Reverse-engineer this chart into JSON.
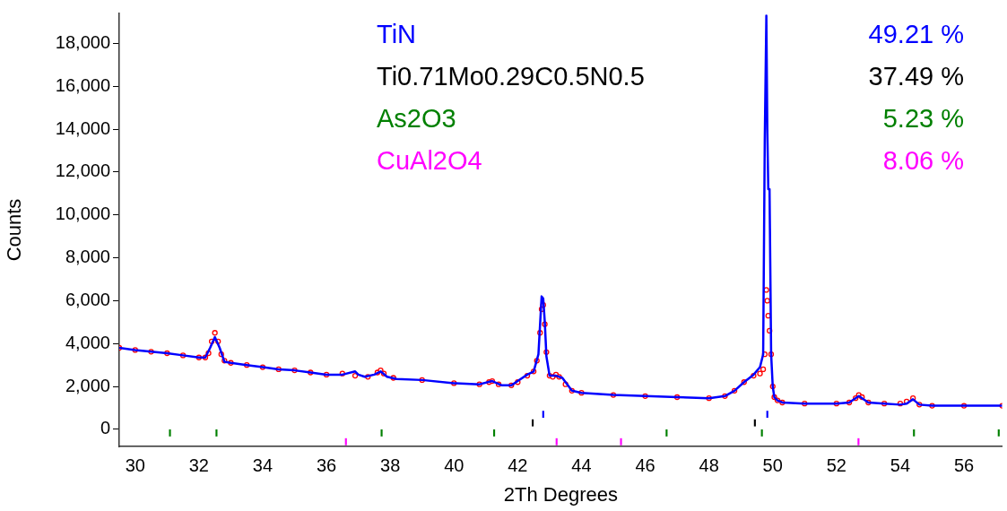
{
  "chart_data": {
    "type": "line",
    "xlabel": "2Th Degrees",
    "ylabel": "Counts",
    "xlim": [
      29.5,
      57.2
    ],
    "ylim": [
      -800,
      19400
    ],
    "xticks": [
      30,
      32,
      34,
      36,
      38,
      40,
      42,
      44,
      46,
      48,
      50,
      52,
      54,
      56
    ],
    "yticks": [
      {
        "value": 0,
        "label": "0"
      },
      {
        "value": 2000,
        "label": "2,000"
      },
      {
        "value": 4000,
        "label": "4,000"
      },
      {
        "value": 6000,
        "label": "6,000"
      },
      {
        "value": 8000,
        "label": "8,000"
      },
      {
        "value": 10000,
        "label": "10,000"
      },
      {
        "value": 12000,
        "label": "12,000"
      },
      {
        "value": 14000,
        "label": "14,000"
      },
      {
        "value": 16000,
        "label": "16,000"
      },
      {
        "value": 18000,
        "label": "18,000"
      }
    ],
    "grid": false,
    "annotations": [
      "49.21 %",
      "37.49 %",
      "5.23 %",
      "8.06 %"
    ],
    "series": [
      {
        "color": "#0000ff",
        "marker": "none",
        "x": [
          29.5,
          30,
          30.5,
          31,
          31.5,
          32,
          32.2,
          32.35,
          32.5,
          32.65,
          32.8,
          33,
          33.5,
          34,
          34.5,
          35,
          35.5,
          36,
          36.5,
          36.9,
          37,
          37.2,
          37.5,
          37.7,
          37.9,
          38.2,
          39,
          40,
          40.8,
          41.2,
          41.5,
          41.8,
          42,
          42.3,
          42.5,
          42.65,
          42.75,
          42.8,
          42.85,
          42.9,
          43,
          43.2,
          43.4,
          43.7,
          44,
          45,
          46,
          47,
          48,
          48.5,
          48.8,
          49.1,
          49.4,
          49.6,
          49.7,
          49.75,
          49.8,
          49.83,
          49.86,
          49.9,
          49.95,
          50,
          50.05,
          50.15,
          50.3,
          51,
          52,
          52.4,
          52.7,
          53,
          53.5,
          54,
          54.2,
          54.4,
          54.6,
          55,
          56,
          57.2
        ],
        "values": [
          3800,
          3700,
          3620,
          3550,
          3450,
          3350,
          3350,
          3800,
          4300,
          3800,
          3150,
          3100,
          3000,
          2900,
          2800,
          2750,
          2650,
          2550,
          2550,
          2700,
          2550,
          2450,
          2550,
          2700,
          2450,
          2350,
          2300,
          2150,
          2100,
          2250,
          2050,
          2050,
          2250,
          2550,
          2700,
          3500,
          6200,
          6100,
          5000,
          3400,
          2500,
          2500,
          2400,
          1800,
          1700,
          1600,
          1550,
          1500,
          1450,
          1550,
          1800,
          2200,
          2550,
          2900,
          3500,
          13500,
          19300,
          14000,
          11200,
          11200,
          3500,
          2000,
          1500,
          1350,
          1250,
          1200,
          1200,
          1250,
          1550,
          1250,
          1200,
          1150,
          1200,
          1400,
          1150,
          1100,
          1100,
          1100
        ]
      },
      {
        "type": "scatter",
        "color": "#ff0000",
        "marker": "circle",
        "x": [
          29.5,
          30,
          30.5,
          31,
          31.5,
          32,
          32.2,
          32.3,
          32.4,
          32.5,
          32.6,
          32.7,
          32.8,
          33,
          33.5,
          34,
          34.5,
          35,
          35.5,
          36,
          36.5,
          36.9,
          37.3,
          37.6,
          37.7,
          37.8,
          38.1,
          39,
          40,
          40.8,
          41.1,
          41.2,
          41.4,
          41.8,
          42,
          42.3,
          42.5,
          42.6,
          42.7,
          42.75,
          42.8,
          42.85,
          42.9,
          43,
          43.1,
          43.2,
          43.3,
          43.5,
          43.7,
          44,
          45,
          46,
          47,
          48,
          48.5,
          48.8,
          49.1,
          49.4,
          49.6,
          49.7,
          49.75,
          49.8,
          49.83,
          49.86,
          49.9,
          49.95,
          50,
          50.05,
          50.15,
          50.3,
          51,
          52,
          52.4,
          52.6,
          52.7,
          52.8,
          53,
          53.5,
          54,
          54.2,
          54.4,
          54.6,
          55,
          56,
          57.2
        ],
        "values": [
          3800,
          3700,
          3620,
          3550,
          3450,
          3350,
          3350,
          3550,
          4100,
          4500,
          4100,
          3500,
          3200,
          3100,
          3000,
          2900,
          2800,
          2750,
          2650,
          2550,
          2600,
          2500,
          2450,
          2650,
          2750,
          2600,
          2400,
          2300,
          2150,
          2100,
          2200,
          2250,
          2100,
          2050,
          2200,
          2500,
          2700,
          3200,
          4500,
          5600,
          5800,
          4900,
          3600,
          2500,
          2450,
          2550,
          2450,
          2100,
          1800,
          1700,
          1600,
          1550,
          1500,
          1450,
          1550,
          1800,
          2200,
          2500,
          2600,
          2800,
          3500,
          6500,
          6000,
          5300,
          4600,
          3500,
          2000,
          1500,
          1350,
          1250,
          1200,
          1200,
          1250,
          1450,
          1600,
          1500,
          1250,
          1200,
          1200,
          1300,
          1450,
          1150,
          1100,
          1100,
          1100
        ]
      },
      {
        "type": "bar",
        "name": "TiN",
        "color": "#0000ff",
        "x": [
          42.8,
          49.83
        ],
        "base": [
          550,
          550
        ],
        "values": [
          300,
          300
        ]
      },
      {
        "type": "bar",
        "name": "Ti0.71Mo0.29C0.5N0.5",
        "color": "#000000",
        "x": [
          42.47,
          49.44
        ],
        "base": [
          150,
          150
        ],
        "values": [
          300,
          300
        ]
      },
      {
        "type": "bar",
        "name": "As2O3",
        "color": "#008000",
        "x": [
          31.09,
          32.55,
          37.73,
          41.26,
          46.67,
          49.66,
          54.43,
          57.09
        ],
        "base": [
          -320,
          -320,
          -320,
          -320,
          -320,
          -320,
          -320,
          -320
        ],
        "values": [
          300,
          300,
          300,
          300,
          300,
          300,
          300,
          300
        ]
      },
      {
        "type": "bar",
        "name": "CuAl2O4",
        "color": "#ff00ff",
        "x": [
          36.61,
          43.22,
          45.24,
          52.69
        ],
        "base": [
          -730,
          -730,
          -730,
          -730
        ],
        "values": [
          300,
          300,
          300,
          300
        ]
      }
    ]
  }
}
